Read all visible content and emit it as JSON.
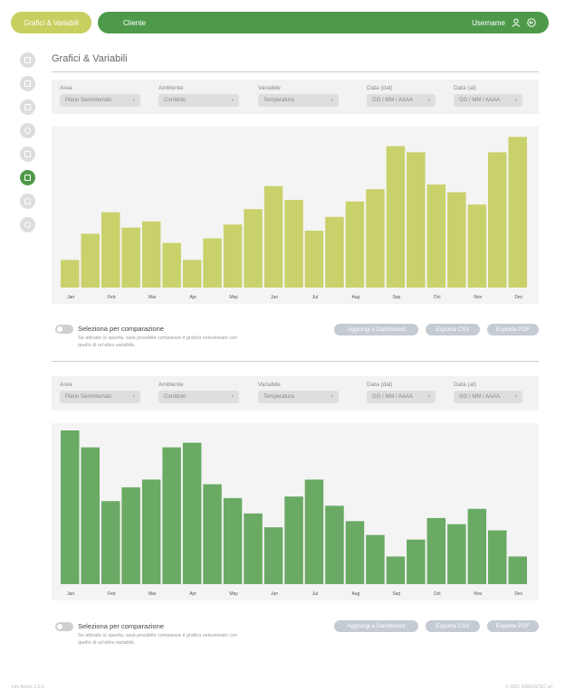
{
  "header": {
    "tab_active": "Grafici & Variabili",
    "client": "Cliente",
    "username": "Username"
  },
  "sidebar": {
    "items": [
      "bar-chart-icon",
      "book-icon",
      "map-icon",
      "clock-icon",
      "list-icon",
      "image-icon",
      "bell-icon",
      "gear-icon"
    ],
    "active_index": 5
  },
  "page": {
    "title": "Grafici & Variabili"
  },
  "panels": [
    {
      "filters": {
        "area_label": "Area",
        "area_value": "Piano Seminterrato",
        "ambiente_label": "Ambiente",
        "ambiente_value": "Corridoio",
        "variabile_label": "Variabile",
        "variabile_value": "Temperatura",
        "data_dal_label": "Data (dal)",
        "data_dal_value": "GG / MM / AAAA",
        "data_al_label": "Data (al)",
        "data_al_value": "GG / MM / AAAA"
      },
      "compare": {
        "title": "Seleziona per comparazione",
        "desc": "Se attivato lo spunta, sarà possibile comparare il grafico selezionato con quello di un'altra variabile."
      },
      "buttons": {
        "dashboard": "Aggiungi a Dashboard",
        "csv": "Esporta CSV",
        "pdf": "Esporta PDF"
      }
    },
    {
      "filters": {
        "area_label": "Area",
        "area_value": "Piano Seminterrato",
        "ambiente_label": "Ambiente",
        "ambiente_value": "Corridoio",
        "variabile_label": "Variabile",
        "variabile_value": "Temperatura",
        "data_dal_label": "Data (dal)",
        "data_dal_value": "GG / MM / AAAA",
        "data_al_label": "Data (al)",
        "data_al_value": "GG / MM / AAAA"
      },
      "compare": {
        "title": "Seleziona per comparazione",
        "desc": "Se attivato lo spunta, sarà possibile comparare il grafico selezionato con quello di un'altra variabile."
      },
      "buttons": {
        "dashboard": "Aggiungi a Dashboard",
        "csv": "Esporta CSV",
        "pdf": "Esporta PDF"
      }
    }
  ],
  "chart_data": [
    {
      "type": "bar",
      "color": "#c9d16b",
      "tick_labels": [
        "Jan",
        "Feb",
        "Mar",
        "Apr",
        "May",
        "Jun",
        "Jul",
        "Aug",
        "Sep",
        "Oct",
        "Nov",
        "Dec"
      ],
      "values": [
        18,
        35,
        49,
        39,
        43,
        29,
        18,
        32,
        41,
        51,
        66,
        57,
        37,
        46,
        56,
        64,
        92,
        88,
        67,
        62,
        54,
        88,
        98
      ],
      "ylim": [
        0,
        100
      ]
    },
    {
      "type": "bar",
      "color": "#6aaa64",
      "tick_labels": [
        "Jan",
        "Feb",
        "Mar",
        "Apr",
        "May",
        "Jun",
        "Jul",
        "Aug",
        "Sep",
        "Oct",
        "Nov",
        "Dec"
      ],
      "values": [
        100,
        89,
        54,
        63,
        68,
        89,
        92,
        65,
        56,
        46,
        37,
        57,
        68,
        51,
        41,
        32,
        18,
        29,
        43,
        39,
        49,
        35,
        18
      ],
      "ylim": [
        0,
        100
      ]
    }
  ],
  "footer": {
    "left": "Info Active 1.0.0",
    "right": "© 2021 GREENTEC srl"
  }
}
